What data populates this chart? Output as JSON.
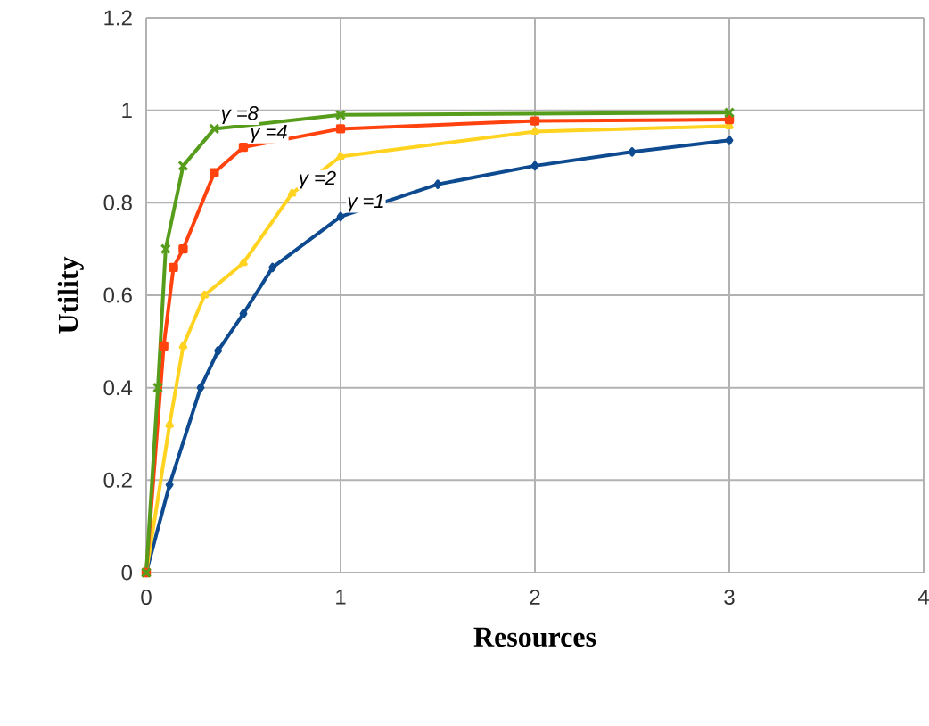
{
  "chart_data": {
    "type": "line",
    "xlabel": "Resources",
    "ylabel": "Utility",
    "xlim": [
      0,
      4
    ],
    "ylim": [
      0,
      1.2
    ],
    "xticks": [
      0,
      1,
      2,
      3,
      4
    ],
    "yticks": [
      0,
      0.2,
      0.4,
      0.6,
      0.8,
      1,
      1.2
    ],
    "grid": true,
    "line_style": "solid",
    "series": [
      {
        "name": "γ =1",
        "color": "#0e4a8f",
        "marker": "diamond",
        "x": [
          0,
          0.12,
          0.28,
          0.37,
          0.5,
          0.65,
          1,
          1.5,
          2,
          2.5,
          3
        ],
        "values": [
          0,
          0.19,
          0.4,
          0.48,
          0.56,
          0.66,
          0.77,
          0.84,
          0.88,
          0.91,
          0.935
        ]
      },
      {
        "name": "γ =2",
        "color": "#ffd320",
        "marker": "triangle",
        "x": [
          0,
          0.12,
          0.19,
          0.3,
          0.5,
          0.75,
          1,
          2,
          3
        ],
        "values": [
          0,
          0.32,
          0.49,
          0.6,
          0.67,
          0.82,
          0.9,
          0.954,
          0.966
        ]
      },
      {
        "name": "γ =4",
        "color": "#ff420e",
        "marker": "square",
        "x": [
          0,
          0.09,
          0.14,
          0.19,
          0.35,
          0.5,
          1,
          2,
          3
        ],
        "values": [
          0,
          0.49,
          0.66,
          0.7,
          0.865,
          0.92,
          0.96,
          0.977,
          0.98
        ]
      },
      {
        "name": "γ =8",
        "color": "#579d1c",
        "marker": "cross",
        "x": [
          0,
          0.06,
          0.1,
          0.19,
          0.35,
          1,
          3
        ],
        "values": [
          0,
          0.4,
          0.7,
          0.88,
          0.96,
          0.99,
          0.995
        ]
      }
    ]
  }
}
